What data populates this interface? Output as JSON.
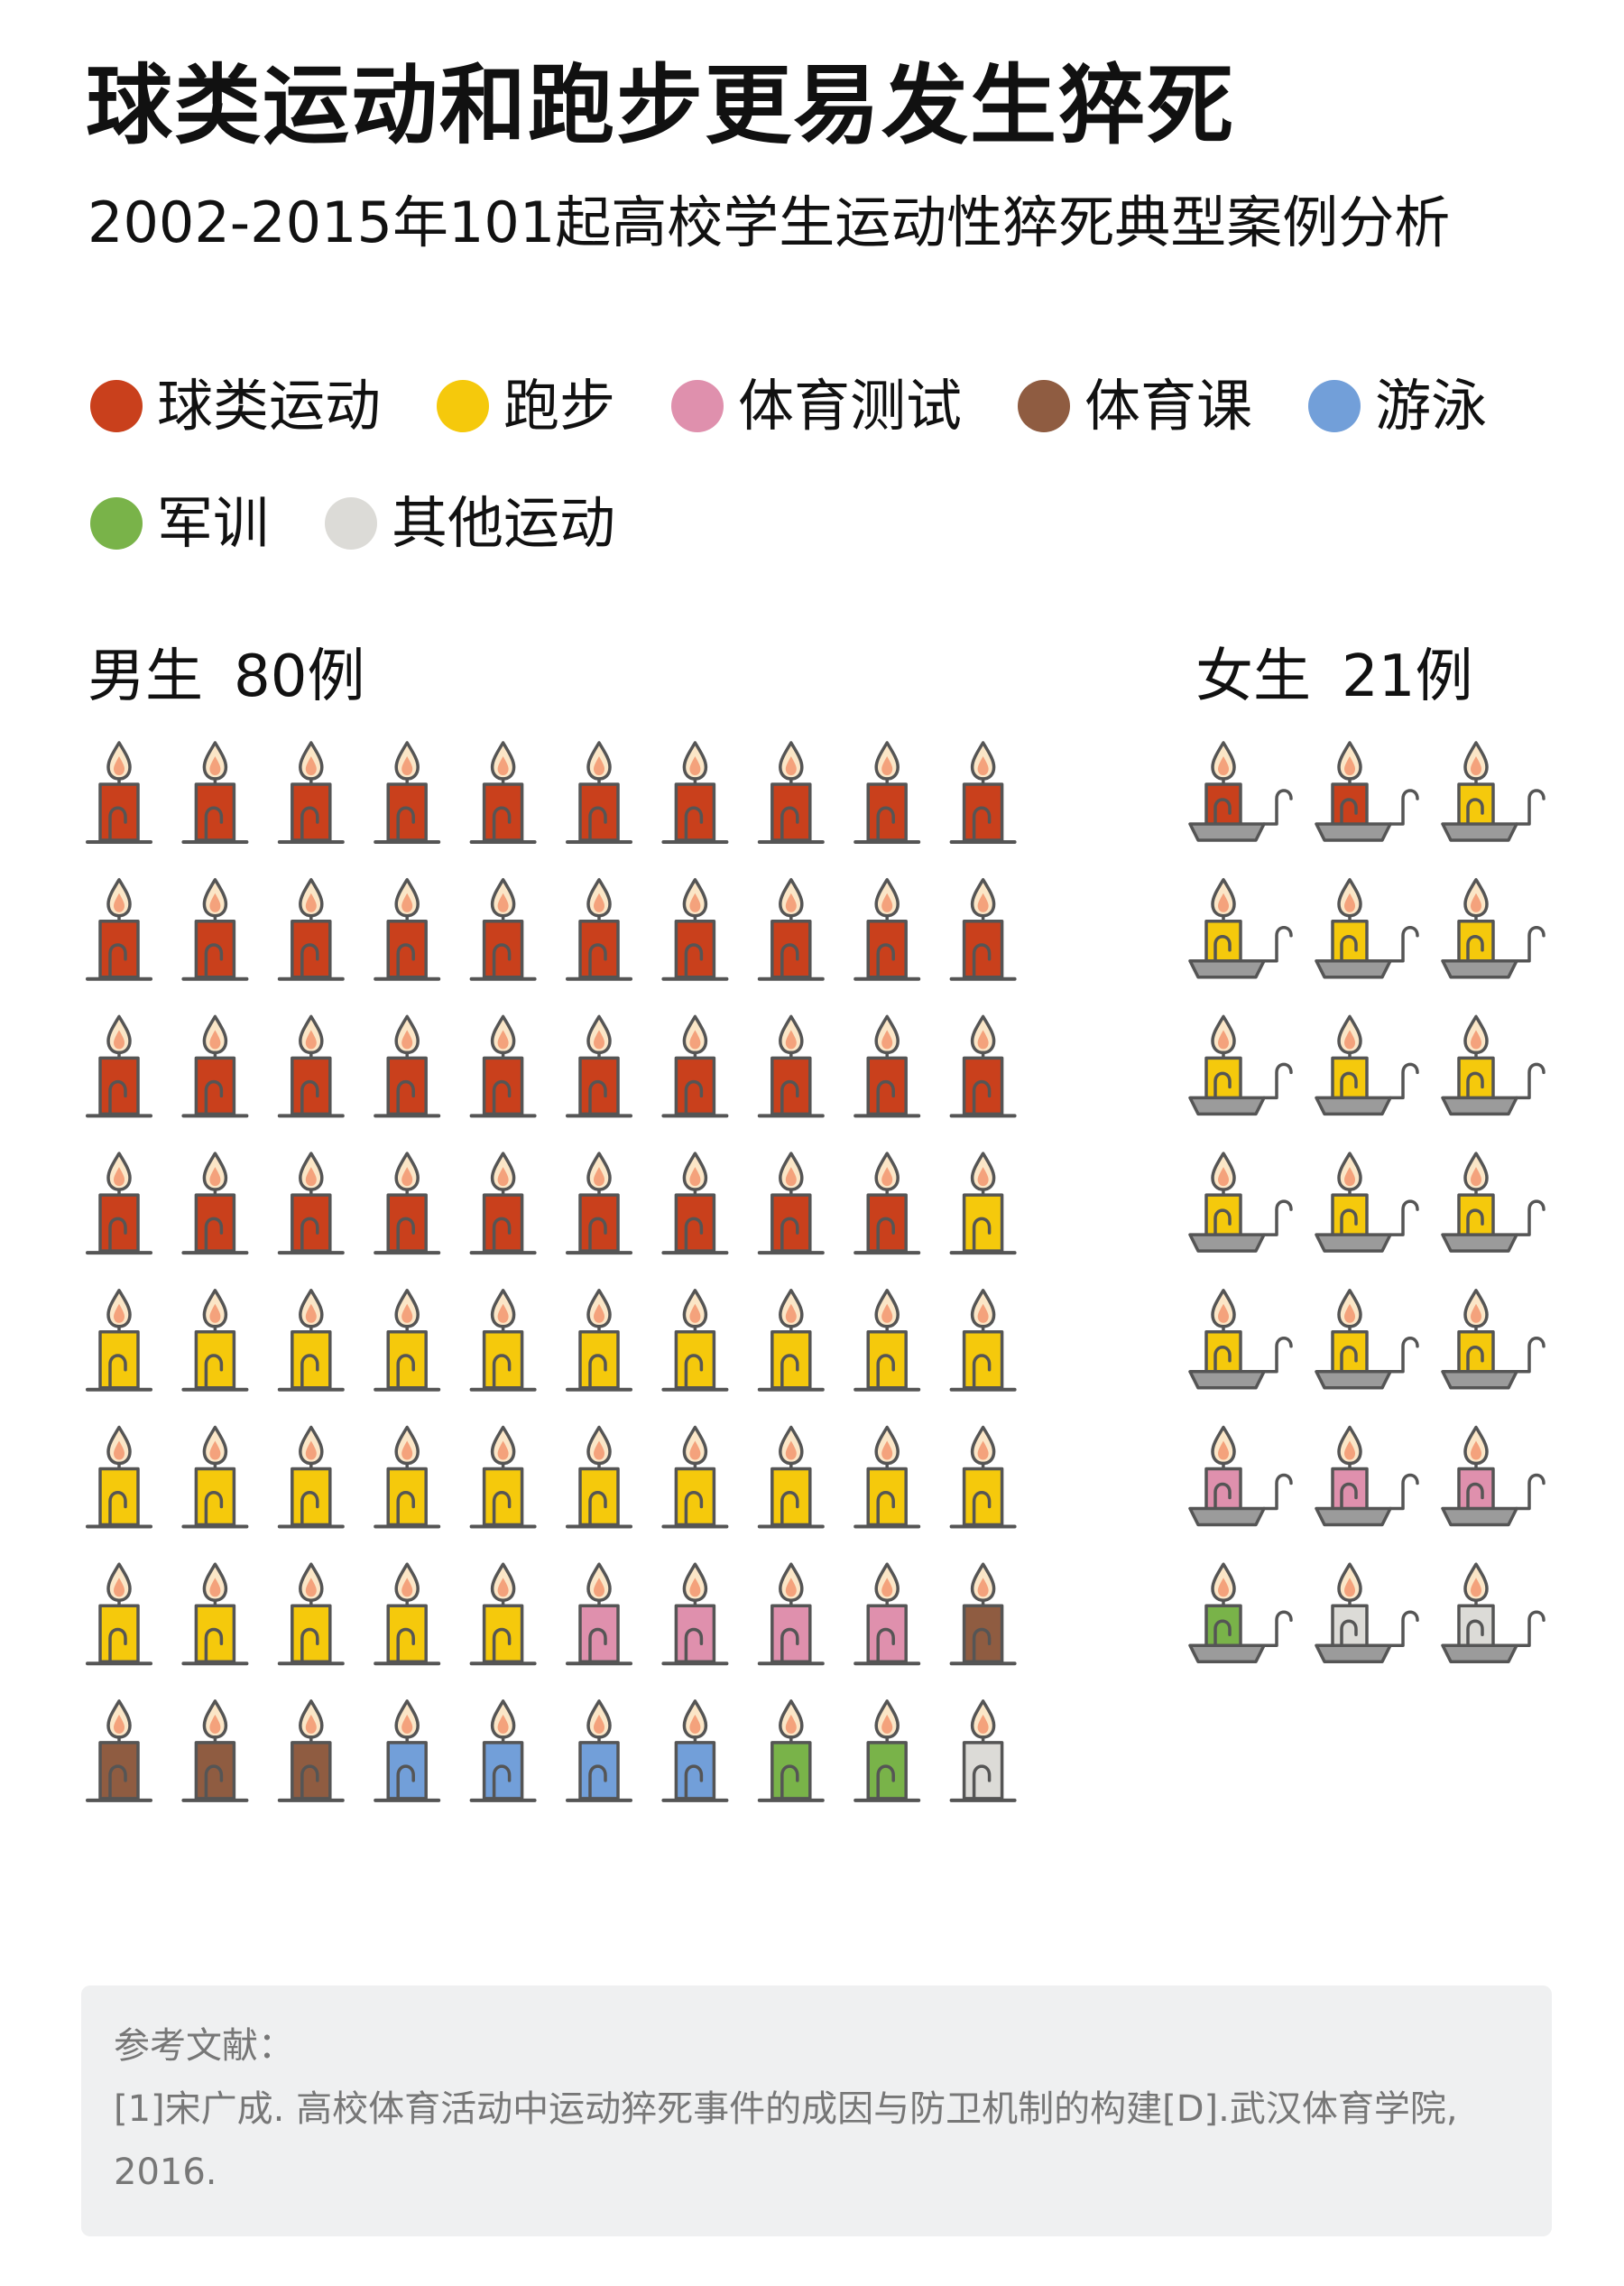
{
  "header": {
    "title": "球类运动和跑步更易发生猝死",
    "subtitle": "2002-2015年101起高校学生运动性猝死典型案例分析"
  },
  "legend": {
    "rows": [
      [
        {
          "key": "ball",
          "label": "球类运动",
          "color": "#c9401c"
        },
        {
          "key": "running",
          "label": "跑步",
          "color": "#f5c90c"
        },
        {
          "key": "pe_test",
          "label": "体育测试",
          "color": "#df90ad"
        },
        {
          "key": "pe_class",
          "label": "体育课",
          "color": "#8f5c41"
        },
        {
          "key": "swimming",
          "label": "游泳",
          "color": "#729fd9"
        }
      ],
      [
        {
          "key": "military",
          "label": "军训",
          "color": "#79b349"
        },
        {
          "key": "other",
          "label": "其他运动",
          "color": "#dcdbd7"
        }
      ]
    ]
  },
  "groups": {
    "male": {
      "label": "男生",
      "count": "80例"
    },
    "female": {
      "label": "女生",
      "count": "21例"
    }
  },
  "chart_data": {
    "type": "pictogram",
    "title": "球类运动和跑步更易发生猝死",
    "subtitle": "2002-2015年101起高校学生运动性猝死典型案例分析",
    "categories": [
      "球类运动",
      "跑步",
      "体育测试",
      "体育课",
      "游泳",
      "军训",
      "其他运动"
    ],
    "series": [
      {
        "name": "男生",
        "values": [
          39,
          26,
          4,
          4,
          4,
          2,
          1
        ]
      },
      {
        "name": "女生",
        "values": [
          2,
          13,
          3,
          0,
          0,
          1,
          2
        ]
      }
    ]
  },
  "references": {
    "heading": "参考文献：",
    "items": [
      "[1]宋广成. 高校体育活动中运动猝死事件的成因与防卫机制的构建[D].武汉体育学院, 2016."
    ]
  }
}
